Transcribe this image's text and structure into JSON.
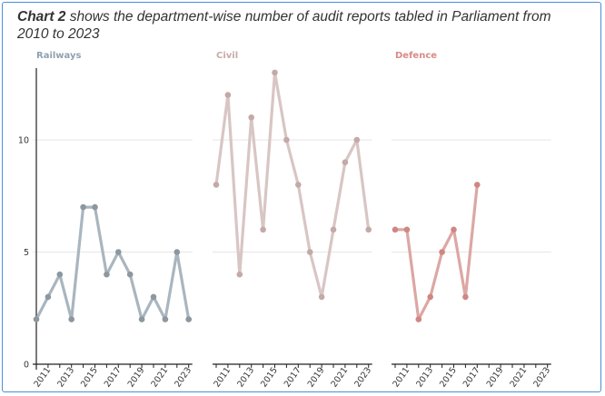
{
  "title": {
    "bold": "Chart 2",
    "rest": " shows the department-wise number of audit reports tabled in Parliament from 2010 to 2023"
  },
  "chart_data": {
    "type": "line",
    "x": [
      2010,
      2011,
      2012,
      2013,
      2014,
      2015,
      2016,
      2017,
      2018,
      2019,
      2020,
      2021,
      2022,
      2023
    ],
    "x_tick_labels": [
      "2011",
      "2013",
      "2015",
      "2017",
      "2019",
      "2021",
      "2023"
    ],
    "y_tick_labels": [
      "0",
      "5",
      "10"
    ],
    "ylim": [
      0,
      13
    ],
    "grid": true,
    "panels": [
      {
        "title": "Railways",
        "color": "#a9b6c0",
        "title_color": "#8fa1b0",
        "point_color": "#8c979f",
        "values": [
          2,
          3,
          4,
          2,
          7,
          7,
          4,
          5,
          4,
          2,
          3,
          2,
          5,
          2
        ]
      },
      {
        "title": "Civil",
        "color": "#d8c6c4",
        "title_color": "#c9a9a7",
        "point_color": "#c3a9a7",
        "values": [
          8,
          12,
          4,
          11,
          6,
          13,
          10,
          8,
          5,
          3,
          6,
          9,
          10,
          6
        ]
      },
      {
        "title": "Defence",
        "color": "#dca7a4",
        "title_color": "#d98a86",
        "point_color": "#cf8783",
        "values": [
          6,
          6,
          2,
          3,
          5,
          6,
          3,
          8,
          null,
          null,
          null,
          null,
          null,
          null
        ]
      }
    ]
  }
}
